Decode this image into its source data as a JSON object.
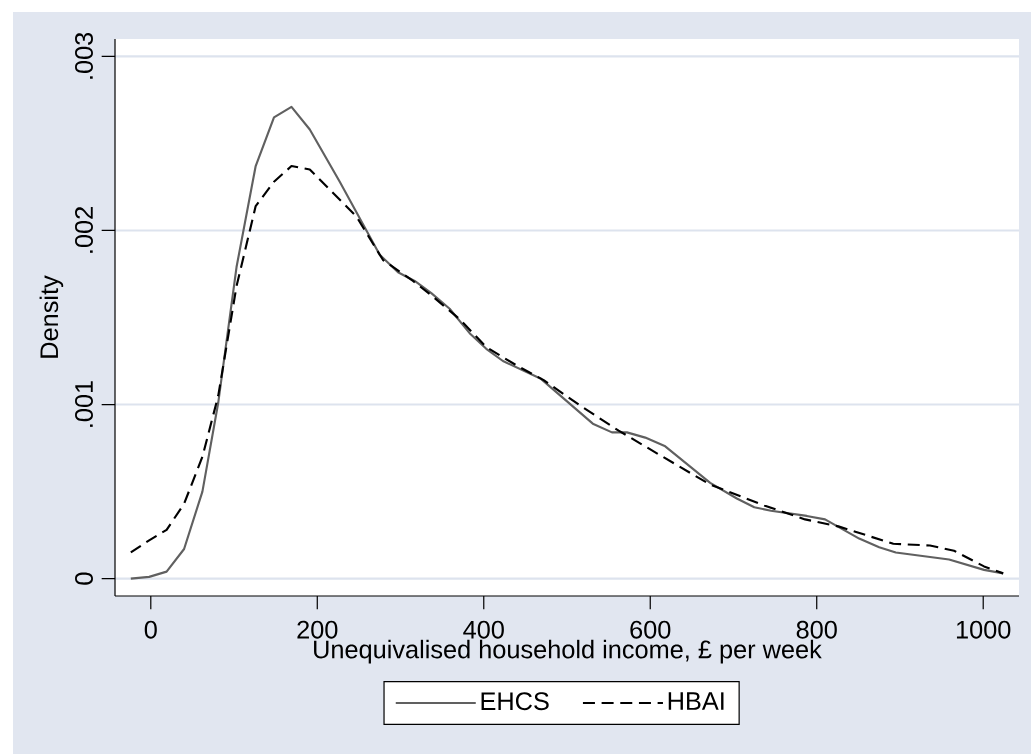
{
  "chart_data": {
    "type": "line",
    "xlabel": "Unequivalised household income, £ per week",
    "ylabel": "Density",
    "xlim": [
      -43,
      1043
    ],
    "ylim": [
      -0.0001,
      0.0031
    ],
    "xticks": [
      0,
      200,
      400,
      600,
      800,
      1000
    ],
    "yticks": [
      0,
      {
        "value": 0.001,
        "label": ".001"
      },
      {
        "value": 0.002,
        "label": ".002"
      },
      {
        "value": 0.003,
        "label": ".003"
      }
    ],
    "grid": "y",
    "legend": "bottom",
    "series": [
      {
        "name": "EHCS",
        "color": "#606060",
        "line_style": "solid",
        "x": [
          -24,
          -2,
          19,
          40,
          62,
          81,
          103,
          126,
          148,
          169,
          191,
          227,
          275,
          297,
          317,
          337,
          359,
          383,
          403,
          423,
          468,
          531,
          554,
          572,
          594,
          618,
          672,
          704,
          725,
          745,
          788,
          810,
          851,
          875,
          895,
          959,
          1001,
          1024
        ],
        "values": [
          0,
          1e-05,
          4e-05,
          0.00017,
          0.0005,
          0.00101,
          0.00179,
          0.00237,
          0.00265,
          0.00271,
          0.00258,
          0.00228,
          0.00186,
          0.00176,
          0.00171,
          0.00164,
          0.00155,
          0.00141,
          0.00132,
          0.00125,
          0.00115,
          0.00089,
          0.00084,
          0.00084,
          0.00081,
          0.00076,
          0.00055,
          0.00046,
          0.00041,
          0.00039,
          0.00036,
          0.00034,
          0.00023,
          0.00018,
          0.00015,
          0.00011,
          5e-05,
          3e-05
        ]
      },
      {
        "name": "HBAI",
        "color": "#000000",
        "line_style": "dashed",
        "x": [
          -24,
          -2,
          19,
          40,
          62,
          81,
          103,
          126,
          148,
          169,
          191,
          247,
          279,
          315,
          339,
          371,
          403,
          441,
          472,
          517,
          562,
          615,
          672,
          737,
          786,
          826,
          892,
          936,
          965,
          1001,
          1024
        ],
        "values": [
          0.00015,
          0.00022,
          0.00028,
          0.00043,
          0.0007,
          0.00105,
          0.00168,
          0.00214,
          0.00228,
          0.00237,
          0.00235,
          0.00208,
          0.00183,
          0.00171,
          0.00162,
          0.00149,
          0.00133,
          0.00122,
          0.00114,
          0.00099,
          0.00085,
          0.0007,
          0.00054,
          0.00042,
          0.00034,
          0.0003,
          0.0002,
          0.00019,
          0.00016,
          7e-05,
          3e-05
        ]
      }
    ]
  }
}
